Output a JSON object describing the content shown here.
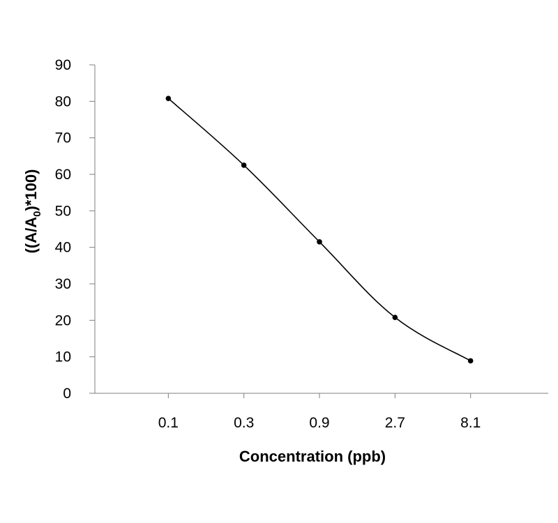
{
  "chart_data": {
    "type": "line",
    "title": "",
    "xlabel": "Concentration (ppb)",
    "ylabel": {
      "main": "((A/A",
      "subscript": "0",
      "suffix": ")*100)"
    },
    "categories": [
      "0.1",
      "0.3",
      "0.9",
      "2.7",
      "8.1"
    ],
    "series": [
      {
        "values": [
          80.8,
          62.5,
          41.5,
          20.8,
          8.9
        ]
      }
    ],
    "ylim": [
      0,
      90
    ],
    "yticks": [
      "0",
      "10",
      "20",
      "30",
      "40",
      "50",
      "60",
      "70",
      "80",
      "90"
    ],
    "grid": false,
    "legend": "none",
    "line_style": "smoothed",
    "marker": "filled-circle",
    "color": "#000000"
  }
}
